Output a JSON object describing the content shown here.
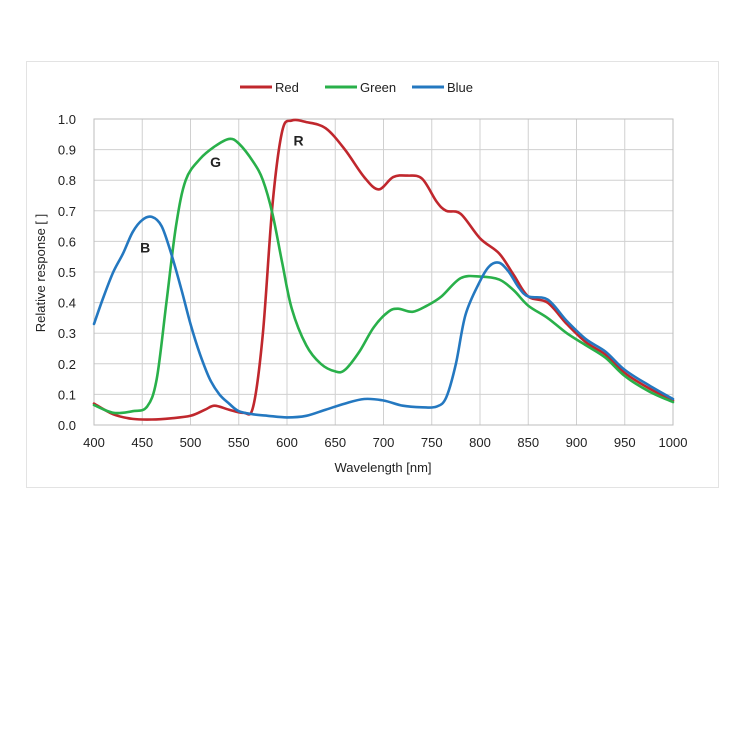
{
  "chart_data": {
    "type": "line",
    "title": "",
    "xlabel": "Wavelength [nm]",
    "ylabel": "Relative response [ ]",
    "xlim": [
      400,
      1000
    ],
    "ylim": [
      0,
      1.0
    ],
    "xticks": [
      400,
      450,
      500,
      550,
      600,
      650,
      700,
      750,
      800,
      850,
      900,
      950,
      1000
    ],
    "yticks": [
      "0.0",
      "0.1",
      "0.2",
      "0.3",
      "0.4",
      "0.5",
      "0.6",
      "0.7",
      "0.8",
      "0.9",
      "1.0"
    ],
    "grid": true,
    "legend_position": "top",
    "series": [
      {
        "name": "Red",
        "color": "#c0272d",
        "label": "R",
        "points": [
          [
            400,
            0.07
          ],
          [
            420,
            0.035
          ],
          [
            440,
            0.02
          ],
          [
            460,
            0.018
          ],
          [
            480,
            0.022
          ],
          [
            500,
            0.03
          ],
          [
            515,
            0.05
          ],
          [
            525,
            0.063
          ],
          [
            540,
            0.05
          ],
          [
            555,
            0.04
          ],
          [
            565,
            0.06
          ],
          [
            575,
            0.3
          ],
          [
            585,
            0.72
          ],
          [
            595,
            0.96
          ],
          [
            605,
            0.995
          ],
          [
            620,
            0.99
          ],
          [
            640,
            0.97
          ],
          [
            660,
            0.9
          ],
          [
            680,
            0.81
          ],
          [
            695,
            0.77
          ],
          [
            710,
            0.81
          ],
          [
            725,
            0.815
          ],
          [
            740,
            0.805
          ],
          [
            755,
            0.73
          ],
          [
            765,
            0.7
          ],
          [
            780,
            0.69
          ],
          [
            800,
            0.61
          ],
          [
            820,
            0.56
          ],
          [
            835,
            0.49
          ],
          [
            850,
            0.42
          ],
          [
            870,
            0.4
          ],
          [
            890,
            0.33
          ],
          [
            910,
            0.27
          ],
          [
            930,
            0.23
          ],
          [
            950,
            0.17
          ],
          [
            975,
            0.12
          ],
          [
            1000,
            0.08
          ]
        ]
      },
      {
        "name": "Green",
        "color": "#29b04a",
        "label": "G",
        "points": [
          [
            400,
            0.065
          ],
          [
            420,
            0.04
          ],
          [
            440,
            0.045
          ],
          [
            455,
            0.06
          ],
          [
            465,
            0.15
          ],
          [
            475,
            0.4
          ],
          [
            485,
            0.65
          ],
          [
            495,
            0.8
          ],
          [
            510,
            0.87
          ],
          [
            525,
            0.91
          ],
          [
            540,
            0.935
          ],
          [
            550,
            0.92
          ],
          [
            565,
            0.86
          ],
          [
            575,
            0.8
          ],
          [
            585,
            0.69
          ],
          [
            595,
            0.53
          ],
          [
            605,
            0.38
          ],
          [
            620,
            0.26
          ],
          [
            635,
            0.2
          ],
          [
            650,
            0.175
          ],
          [
            660,
            0.18
          ],
          [
            675,
            0.24
          ],
          [
            690,
            0.32
          ],
          [
            705,
            0.37
          ],
          [
            715,
            0.38
          ],
          [
            730,
            0.37
          ],
          [
            745,
            0.39
          ],
          [
            760,
            0.42
          ],
          [
            780,
            0.48
          ],
          [
            800,
            0.485
          ],
          [
            820,
            0.475
          ],
          [
            835,
            0.44
          ],
          [
            850,
            0.39
          ],
          [
            870,
            0.35
          ],
          [
            890,
            0.3
          ],
          [
            910,
            0.26
          ],
          [
            930,
            0.22
          ],
          [
            950,
            0.16
          ],
          [
            975,
            0.11
          ],
          [
            1000,
            0.075
          ]
        ]
      },
      {
        "name": "Blue",
        "color": "#2478c0",
        "label": "B",
        "points": [
          [
            400,
            0.33
          ],
          [
            410,
            0.42
          ],
          [
            420,
            0.5
          ],
          [
            430,
            0.56
          ],
          [
            440,
            0.63
          ],
          [
            450,
            0.67
          ],
          [
            460,
            0.68
          ],
          [
            470,
            0.65
          ],
          [
            480,
            0.56
          ],
          [
            490,
            0.45
          ],
          [
            500,
            0.33
          ],
          [
            510,
            0.23
          ],
          [
            520,
            0.15
          ],
          [
            530,
            0.1
          ],
          [
            540,
            0.07
          ],
          [
            550,
            0.045
          ],
          [
            565,
            0.035
          ],
          [
            580,
            0.03
          ],
          [
            600,
            0.025
          ],
          [
            620,
            0.03
          ],
          [
            640,
            0.05
          ],
          [
            660,
            0.07
          ],
          [
            680,
            0.085
          ],
          [
            700,
            0.08
          ],
          [
            720,
            0.063
          ],
          [
            740,
            0.058
          ],
          [
            755,
            0.06
          ],
          [
            765,
            0.09
          ],
          [
            775,
            0.2
          ],
          [
            785,
            0.36
          ],
          [
            800,
            0.47
          ],
          [
            810,
            0.52
          ],
          [
            820,
            0.53
          ],
          [
            830,
            0.5
          ],
          [
            840,
            0.45
          ],
          [
            850,
            0.42
          ],
          [
            870,
            0.41
          ],
          [
            890,
            0.34
          ],
          [
            910,
            0.28
          ],
          [
            930,
            0.24
          ],
          [
            950,
            0.18
          ],
          [
            975,
            0.13
          ],
          [
            1000,
            0.085
          ]
        ]
      }
    ]
  }
}
